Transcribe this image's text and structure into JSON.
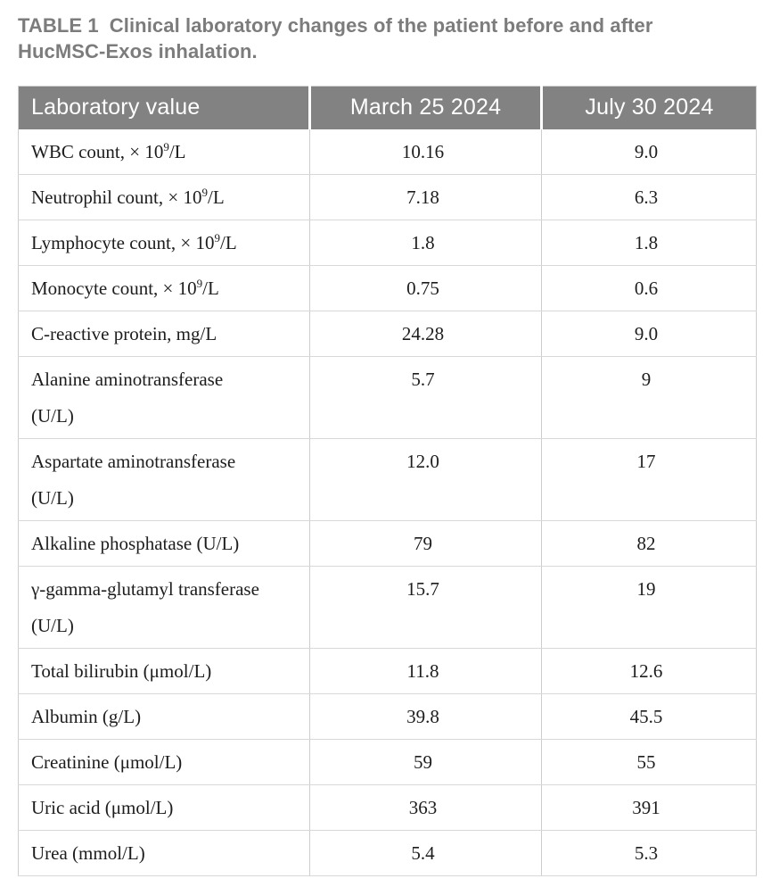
{
  "title": {
    "label": "TABLE 1",
    "caption": "Clinical laboratory changes of the patient before and after HucMSC-Exos inhalation."
  },
  "colors": {
    "header_bg": "#828282",
    "header_text": "#ffffff",
    "title_text": "#7c7c7c",
    "body_text": "#1d1d1d",
    "border": "#cdcdcd"
  },
  "table": {
    "headers": [
      "Laboratory value",
      "March 25 2024",
      "July 30 2024"
    ],
    "rows": [
      {
        "name": "WBC count, × 10",
        "sup": "9",
        "name_suffix": "/L",
        "line2": "",
        "before": "10.16",
        "after": "9.0"
      },
      {
        "name": "Neutrophil count, × 10",
        "sup": "9",
        "name_suffix": "/L",
        "line2": "",
        "before": "7.18",
        "after": "6.3"
      },
      {
        "name": "Lymphocyte count, × 10",
        "sup": "9",
        "name_suffix": "/L",
        "line2": "",
        "before": "1.8",
        "after": "1.8"
      },
      {
        "name": "Monocyte count, × 10",
        "sup": "9",
        "name_suffix": "/L",
        "line2": "",
        "before": "0.75",
        "after": "0.6"
      },
      {
        "name": "C-reactive protein, mg/L",
        "sup": "",
        "name_suffix": "",
        "line2": "",
        "before": "24.28",
        "after": "9.0"
      },
      {
        "name": "Alanine aminotransferase",
        "sup": "",
        "name_suffix": "",
        "line2": "(U/L)",
        "before": "5.7",
        "after": "9"
      },
      {
        "name": "Aspartate aminotransferase",
        "sup": "",
        "name_suffix": "",
        "line2": "(U/L)",
        "before": "12.0",
        "after": "17"
      },
      {
        "name": "Alkaline phosphatase (U/L)",
        "sup": "",
        "name_suffix": "",
        "line2": "",
        "before": "79",
        "after": "82"
      },
      {
        "name": "γ-gamma-glutamyl transferase",
        "sup": "",
        "name_suffix": "",
        "line2": "(U/L)",
        "before": "15.7",
        "after": "19"
      },
      {
        "name": "Total bilirubin (μmol/L)",
        "sup": "",
        "name_suffix": "",
        "line2": "",
        "before": "11.8",
        "after": "12.6"
      },
      {
        "name": "Albumin (g/L)",
        "sup": "",
        "name_suffix": "",
        "line2": "",
        "before": "39.8",
        "after": "45.5"
      },
      {
        "name": "Creatinine (μmol/L)",
        "sup": "",
        "name_suffix": "",
        "line2": "",
        "before": "59",
        "after": "55"
      },
      {
        "name": "Uric acid (μmol/L)",
        "sup": "",
        "name_suffix": "",
        "line2": "",
        "before": "363",
        "after": "391"
      },
      {
        "name": "Urea (mmol/L)",
        "sup": "",
        "name_suffix": "",
        "line2": "",
        "before": "5.4",
        "after": "5.3"
      }
    ]
  }
}
